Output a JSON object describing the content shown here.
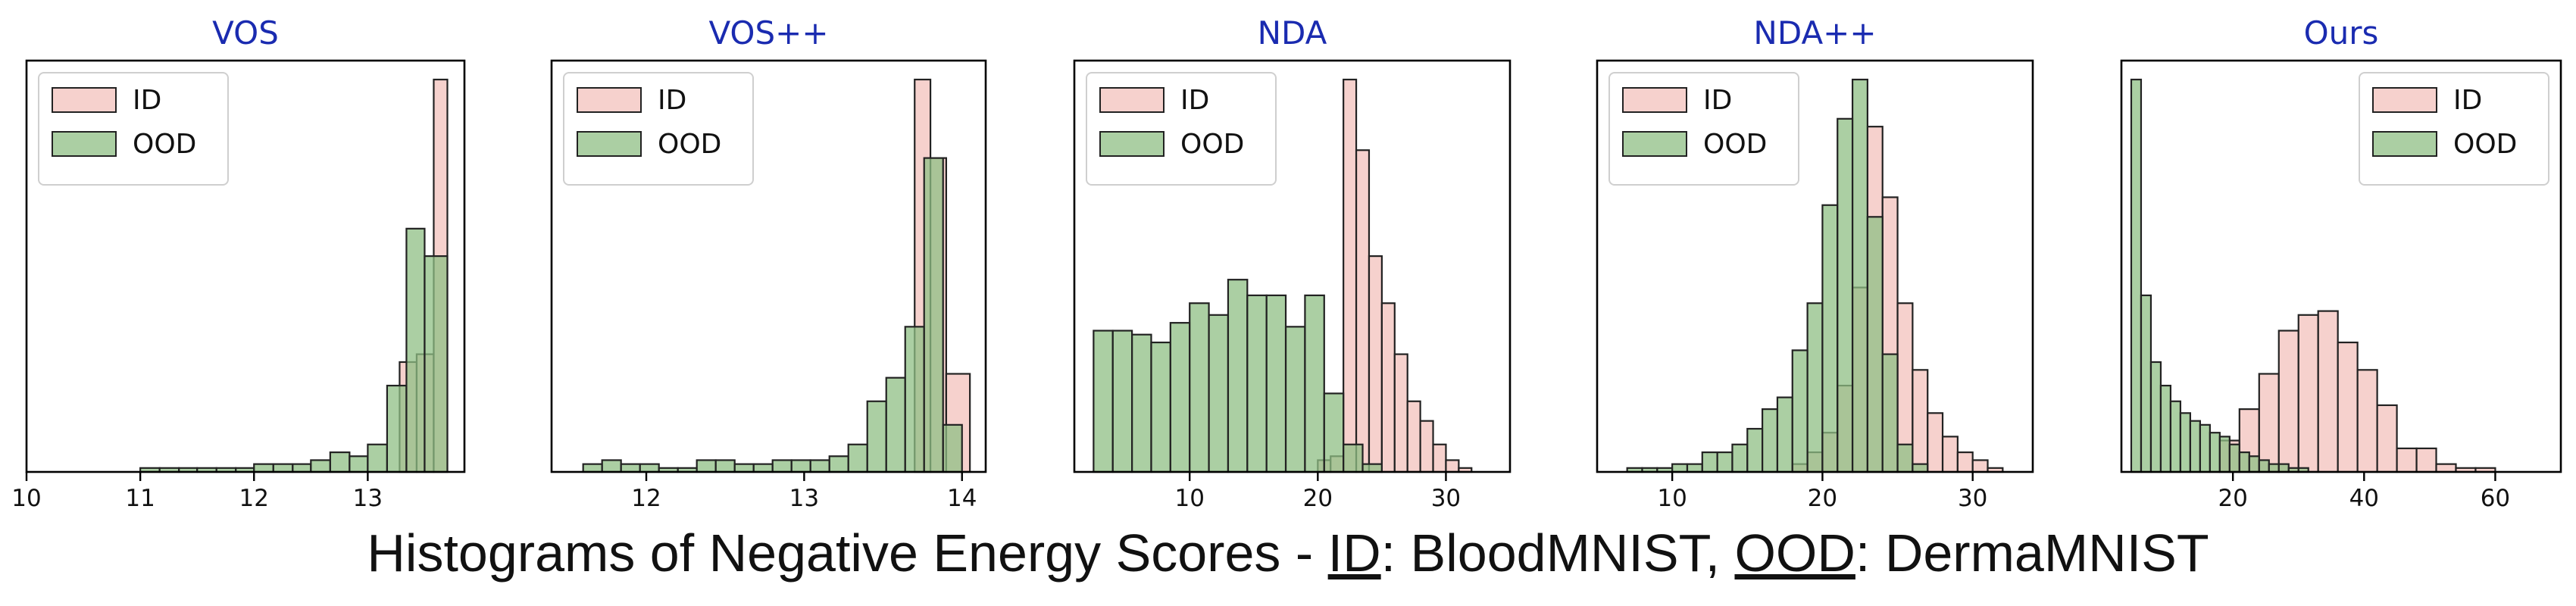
{
  "caption": {
    "prefix": "Histograms of Negative Energy Scores - ",
    "id_label": "ID",
    "id_dataset": ": BloodMNIST,  ",
    "ood_label": "OOD",
    "ood_dataset": ": DermaMNIST"
  },
  "colors": {
    "title": "#1a2bb0",
    "id_fill": "#f4c9c4",
    "ood_fill": "#8fbf84",
    "edge": "#222222"
  },
  "chart_data": [
    {
      "type": "histogram",
      "title": "VOS",
      "xlim": [
        10,
        13.85
      ],
      "xticks": [
        10,
        11,
        12,
        13
      ],
      "ymax": 100,
      "legend": {
        "position": "top-left",
        "entries": [
          "ID",
          "OOD"
        ]
      },
      "series": [
        {
          "name": "ID",
          "bins": [
            [
              13.28,
              13.43,
              28
            ],
            [
              13.43,
              13.58,
              30
            ],
            [
              13.58,
              13.7,
              100
            ]
          ]
        },
        {
          "name": "OOD",
          "bins": [
            [
              11.0,
              11.17,
              1
            ],
            [
              11.17,
              11.34,
              1
            ],
            [
              11.34,
              11.5,
              1
            ],
            [
              11.5,
              11.67,
              1
            ],
            [
              11.67,
              11.84,
              1
            ],
            [
              11.84,
              12.0,
              1
            ],
            [
              12.0,
              12.17,
              2
            ],
            [
              12.17,
              12.34,
              2
            ],
            [
              12.34,
              12.5,
              2
            ],
            [
              12.5,
              12.67,
              3
            ],
            [
              12.67,
              12.84,
              5
            ],
            [
              12.84,
              13.0,
              4
            ],
            [
              13.0,
              13.17,
              7
            ],
            [
              13.17,
              13.34,
              22
            ],
            [
              13.34,
              13.5,
              62
            ],
            [
              13.5,
              13.7,
              55
            ]
          ]
        }
      ]
    },
    {
      "type": "histogram",
      "title": "VOS++",
      "xlim": [
        11.4,
        14.15
      ],
      "xticks": [
        12,
        13,
        14
      ],
      "ymax": 100,
      "legend": {
        "position": "top-left",
        "entries": [
          "ID",
          "OOD"
        ]
      },
      "series": [
        {
          "name": "ID",
          "bins": [
            [
              13.7,
              13.8,
              100
            ],
            [
              13.8,
              13.9,
              80
            ],
            [
              13.9,
              14.05,
              25
            ]
          ]
        },
        {
          "name": "OOD",
          "bins": [
            [
              11.6,
              11.72,
              2
            ],
            [
              11.72,
              11.84,
              3
            ],
            [
              11.84,
              11.96,
              2
            ],
            [
              11.96,
              12.08,
              2
            ],
            [
              12.08,
              12.2,
              1
            ],
            [
              12.2,
              12.32,
              1
            ],
            [
              12.32,
              12.44,
              3
            ],
            [
              12.44,
              12.56,
              3
            ],
            [
              12.56,
              12.68,
              2
            ],
            [
              12.68,
              12.8,
              2
            ],
            [
              12.8,
              12.92,
              3
            ],
            [
              12.92,
              13.04,
              3
            ],
            [
              13.04,
              13.16,
              3
            ],
            [
              13.16,
              13.28,
              4
            ],
            [
              13.28,
              13.4,
              7
            ],
            [
              13.4,
              13.52,
              18
            ],
            [
              13.52,
              13.64,
              24
            ],
            [
              13.64,
              13.76,
              37
            ],
            [
              13.76,
              13.88,
              80
            ],
            [
              13.88,
              14.0,
              12
            ]
          ]
        }
      ]
    },
    {
      "type": "histogram",
      "title": "NDA",
      "xlim": [
        1,
        35
      ],
      "xticks": [
        10,
        20,
        30
      ],
      "ymax": 100,
      "legend": {
        "position": "top-left",
        "entries": [
          "ID",
          "OOD"
        ]
      },
      "series": [
        {
          "name": "ID",
          "bins": [
            [
              20,
              21,
              3
            ],
            [
              21,
              22,
              4
            ],
            [
              22,
              23,
              100
            ],
            [
              23,
              24,
              82
            ],
            [
              24,
              25,
              55
            ],
            [
              25,
              26,
              43
            ],
            [
              26,
              27,
              30
            ],
            [
              27,
              28,
              18
            ],
            [
              28,
              29,
              13
            ],
            [
              29,
              30,
              7
            ],
            [
              30,
              31,
              3
            ],
            [
              31,
              32,
              1
            ]
          ]
        },
        {
          "name": "OOD",
          "bins": [
            [
              2.5,
              4,
              36
            ],
            [
              4,
              5.5,
              36
            ],
            [
              5.5,
              7,
              35
            ],
            [
              7,
              8.5,
              33
            ],
            [
              8.5,
              10,
              38
            ],
            [
              10,
              11.5,
              43
            ],
            [
              11.5,
              13,
              40
            ],
            [
              13,
              14.5,
              49
            ],
            [
              14.5,
              16,
              45
            ],
            [
              16,
              17.5,
              45
            ],
            [
              17.5,
              19,
              37
            ],
            [
              19,
              20.5,
              45
            ],
            [
              20.5,
              22,
              20
            ],
            [
              22,
              23.5,
              7
            ],
            [
              23.5,
              25,
              2
            ]
          ]
        }
      ]
    },
    {
      "type": "histogram",
      "title": "NDA++",
      "xlim": [
        5,
        34
      ],
      "xticks": [
        10,
        20,
        30
      ],
      "ymax": 100,
      "legend": {
        "position": "top-left",
        "entries": [
          "ID",
          "OOD"
        ]
      },
      "series": [
        {
          "name": "ID",
          "bins": [
            [
              18,
              19,
              2
            ],
            [
              19,
              20,
              5
            ],
            [
              20,
              21,
              10
            ],
            [
              21,
              22,
              22
            ],
            [
              22,
              23,
              47
            ],
            [
              23,
              24,
              88
            ],
            [
              24,
              25,
              70
            ],
            [
              25,
              26,
              43
            ],
            [
              26,
              27,
              26
            ],
            [
              27,
              28,
              15
            ],
            [
              28,
              29,
              9
            ],
            [
              29,
              30,
              5
            ],
            [
              30,
              31,
              3
            ],
            [
              31,
              32,
              1
            ]
          ]
        },
        {
          "name": "OOD",
          "bins": [
            [
              7,
              8,
              1
            ],
            [
              8,
              9,
              1
            ],
            [
              9,
              10,
              1
            ],
            [
              10,
              11,
              2
            ],
            [
              11,
              12,
              2
            ],
            [
              12,
              13,
              5
            ],
            [
              13,
              14,
              5
            ],
            [
              14,
              15,
              7
            ],
            [
              15,
              16,
              11
            ],
            [
              16,
              17,
              16
            ],
            [
              17,
              18,
              19
            ],
            [
              18,
              19,
              31
            ],
            [
              19,
              20,
              43
            ],
            [
              20,
              21,
              68
            ],
            [
              21,
              22,
              90
            ],
            [
              22,
              23,
              100
            ],
            [
              23,
              24,
              65
            ],
            [
              24,
              25,
              30
            ],
            [
              25,
              26,
              7
            ],
            [
              26,
              27,
              2
            ]
          ]
        }
      ]
    },
    {
      "type": "histogram",
      "title": "Ours",
      "xlim": [
        3,
        70
      ],
      "xticks": [
        20,
        40,
        60
      ],
      "ymax": 100,
      "legend": {
        "position": "top-right",
        "entries": [
          "ID",
          "OOD"
        ]
      },
      "series": [
        {
          "name": "ID",
          "bins": [
            [
              18,
              21,
              8
            ],
            [
              21,
              24,
              16
            ],
            [
              24,
              27,
              25
            ],
            [
              27,
              30,
              36
            ],
            [
              30,
              33,
              40
            ],
            [
              33,
              36,
              41
            ],
            [
              36,
              39,
              33
            ],
            [
              39,
              42,
              26
            ],
            [
              42,
              45,
              17
            ],
            [
              45,
              48,
              6
            ],
            [
              48,
              51,
              6
            ],
            [
              51,
              54,
              2
            ],
            [
              54,
              57,
              1
            ],
            [
              57,
              60,
              1
            ]
          ]
        },
        {
          "name": "OOD",
          "bins": [
            [
              4.5,
              6,
              100
            ],
            [
              6,
              7.5,
              45
            ],
            [
              7.5,
              9,
              28
            ],
            [
              9,
              10.5,
              22
            ],
            [
              10.5,
              12,
              18
            ],
            [
              12,
              13.5,
              15
            ],
            [
              13.5,
              15,
              13
            ],
            [
              15,
              16.5,
              12
            ],
            [
              16.5,
              18,
              10
            ],
            [
              18,
              19.5,
              9
            ],
            [
              19.5,
              21,
              7
            ],
            [
              21,
              22.5,
              5
            ],
            [
              22.5,
              24,
              4
            ],
            [
              24,
              25.5,
              3
            ],
            [
              25.5,
              27,
              2
            ],
            [
              27,
              28.5,
              2
            ],
            [
              28.5,
              30,
              1
            ],
            [
              30,
              31.5,
              1
            ]
          ]
        }
      ]
    }
  ]
}
